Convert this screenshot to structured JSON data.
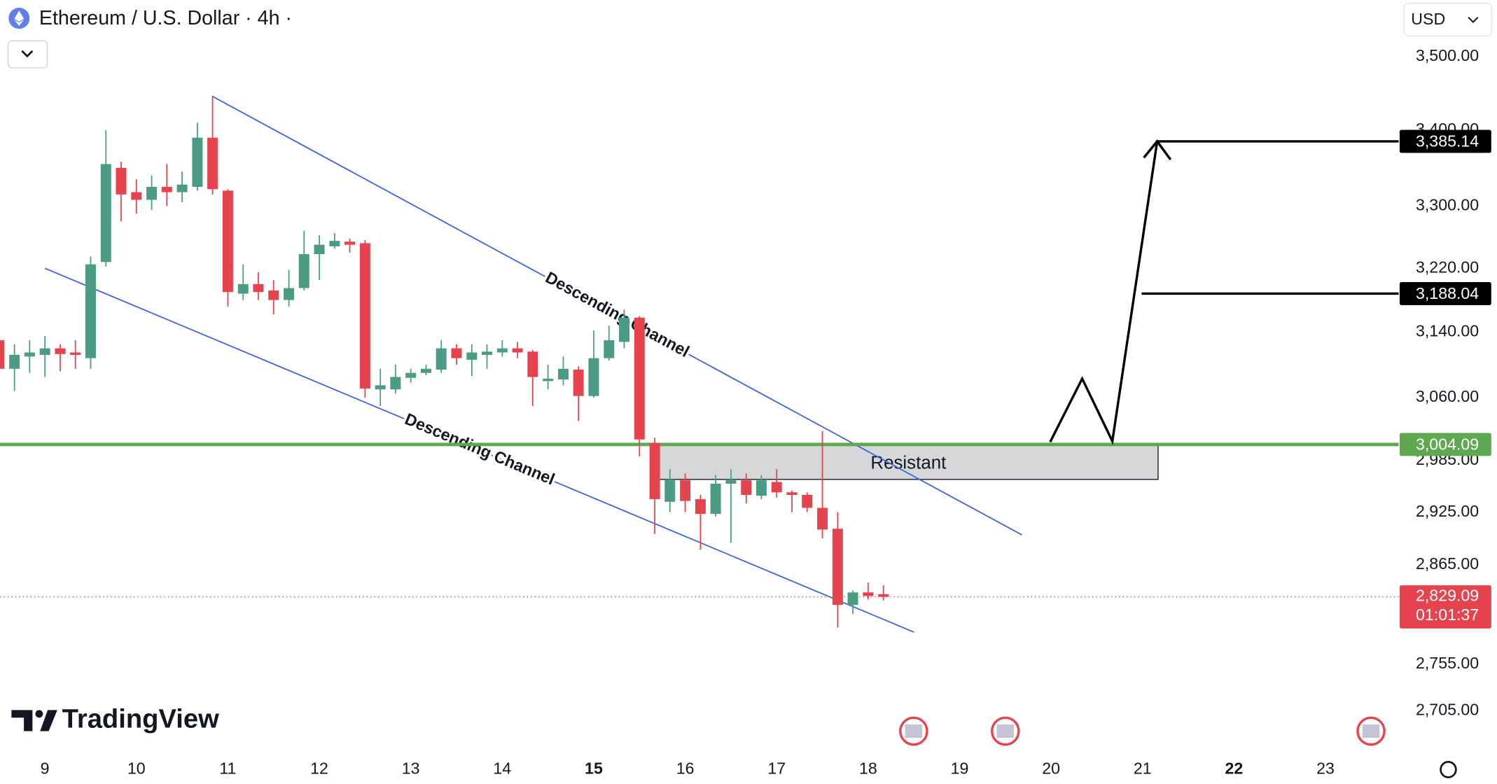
{
  "chart_data": {
    "type": "candlestick",
    "title": "Ethereum / U.S. Dollar · 4h ·",
    "currency": "USD",
    "brand": "TradingView",
    "log": true,
    "grid": false,
    "up_color": "#4c9c85",
    "down_color": "#e5444f",
    "xlim": [
      8.509,
      23.8
    ],
    "ylim": [
      2664,
      3579
    ],
    "xticks": [
      9,
      10,
      11,
      12,
      13,
      14,
      15,
      16,
      17,
      18,
      19,
      20,
      21,
      22,
      23
    ],
    "xticks_bold": [
      15,
      22
    ],
    "yticks": [
      {
        "value": 3500,
        "label": "3,500.00"
      },
      {
        "value": 3400,
        "label": "3,400.00"
      },
      {
        "value": 3300,
        "label": "3,300.00"
      },
      {
        "value": 3220,
        "label": "3,220.00"
      },
      {
        "value": 3140,
        "label": "3,140.00"
      },
      {
        "value": 3060,
        "label": "3,060.00"
      },
      {
        "value": 2985,
        "label": "2,985.00"
      },
      {
        "value": 2925,
        "label": "2,925.00"
      },
      {
        "value": 2865,
        "label": "2,865.00"
      },
      {
        "value": 2755,
        "label": "2,755.00"
      },
      {
        "value": 2705,
        "label": "2,705.00"
      }
    ],
    "series": [
      {
        "x": [
          8.5,
          8.667,
          8.833,
          9,
          9.167,
          9.333,
          9.5,
          9.667,
          9.833,
          10,
          10.167,
          10.333,
          10.5,
          10.667,
          10.833,
          11,
          11.167,
          11.333,
          11.5,
          11.667,
          11.833,
          12,
          12.167,
          12.333,
          12.5,
          12.667,
          12.833,
          13,
          13.167,
          13.333,
          13.5,
          13.667,
          13.833,
          14,
          14.167,
          14.333,
          14.5,
          14.667,
          14.833,
          15,
          15.167,
          15.333,
          15.5,
          15.667,
          15.833,
          16,
          16.167,
          16.333,
          16.5,
          16.667,
          16.833,
          17,
          17.167,
          17.333,
          17.5,
          17.667,
          17.833,
          18,
          18.167
        ],
        "open": [
          3130,
          3095,
          3110,
          3112,
          3120,
          3115,
          3108,
          3228,
          3350,
          3318,
          3308,
          3325,
          3318,
          3325,
          3390,
          3320,
          3188,
          3200,
          3192,
          3180,
          3195,
          3238,
          3248,
          3254,
          3252,
          3070,
          3070,
          3084,
          3090,
          3094,
          3120,
          3106,
          3112,
          3115,
          3120,
          3116,
          3080,
          3082,
          3094,
          3062,
          3108,
          3128,
          3158,
          3006,
          2937,
          2962,
          2940,
          2923,
          2958,
          2962,
          2944,
          2960,
          2948,
          2945,
          2930,
          2906,
          2820,
          2834,
          2832
        ],
        "high": [
          3135,
          3125,
          3130,
          3135,
          3125,
          3130,
          3235,
          3400,
          3358,
          3335,
          3340,
          3355,
          3345,
          3410,
          3445,
          3322,
          3225,
          3215,
          3205,
          3218,
          3268,
          3262,
          3265,
          3258,
          3256,
          3095,
          3100,
          3095,
          3100,
          3130,
          3125,
          3125,
          3125,
          3130,
          3128,
          3118,
          3100,
          3110,
          3098,
          3142,
          3148,
          3168,
          3160,
          3012,
          2975,
          2970,
          2945,
          2968,
          2975,
          2970,
          2968,
          2975,
          2950,
          2948,
          3020,
          2925,
          2836,
          2845,
          2842
        ],
        "low": [
          3090,
          3068,
          3090,
          3085,
          3092,
          3095,
          3095,
          3222,
          3280,
          3290,
          3295,
          3300,
          3305,
          3320,
          3315,
          3172,
          3180,
          3180,
          3162,
          3172,
          3192,
          3205,
          3245,
          3240,
          3060,
          3050,
          3065,
          3078,
          3087,
          3090,
          3100,
          3086,
          3095,
          3110,
          3108,
          3050,
          3070,
          3075,
          3032,
          3060,
          3105,
          3120,
          2990,
          2900,
          2925,
          2925,
          2882,
          2920,
          2890,
          2935,
          2940,
          2942,
          2925,
          2925,
          2895,
          2795,
          2810,
          2826,
          2825
        ],
        "close": [
          3095,
          3112,
          3115,
          3120,
          3113,
          3112,
          3225,
          3355,
          3315,
          3308,
          3325,
          3318,
          3328,
          3390,
          3322,
          3190,
          3200,
          3190,
          3180,
          3195,
          3238,
          3250,
          3255,
          3250,
          3071,
          3075,
          3085,
          3090,
          3095,
          3120,
          3108,
          3115,
          3116,
          3120,
          3115,
          3085,
          3083,
          3095,
          3062,
          3108,
          3130,
          3158,
          3010,
          2940,
          2963,
          2938,
          2923,
          2958,
          2963,
          2945,
          2962,
          2948,
          2945,
          2930,
          2905,
          2820,
          2834,
          2830,
          2829
        ]
      }
    ],
    "channels": [
      {
        "label": "Descending Channel",
        "color": "#3d63dd",
        "x": [
          10.827,
          19.68
        ],
        "y": [
          3446,
          2899
        ]
      },
      {
        "label": "Descending Channel",
        "color": "#3d63dd",
        "x": [
          9,
          18.5
        ],
        "y": [
          3220,
          2790
        ]
      }
    ],
    "zone": {
      "label": "Resistant",
      "x": [
        15.71,
        21.17
      ],
      "y": [
        3004.09,
        2963
      ]
    },
    "support_line": {
      "value": 3004.09,
      "label": "3,004.09",
      "color": "#5ea84f"
    },
    "projection": {
      "x": [
        19.99,
        20.34,
        20.67,
        21.16,
        23.8
      ],
      "y": [
        3007,
        3083,
        3008,
        3385.14,
        3385.14
      ]
    },
    "targets": [
      {
        "value": 3385.14,
        "label": "3,385.14",
        "x_start": 21.16
      },
      {
        "value": 3188.04,
        "label": "3,188.04",
        "x_start": 20.99
      }
    ],
    "last_price": {
      "value": 2829.09,
      "label": "2,829.09",
      "countdown": "01:01:37",
      "color": "#e5444f"
    }
  }
}
